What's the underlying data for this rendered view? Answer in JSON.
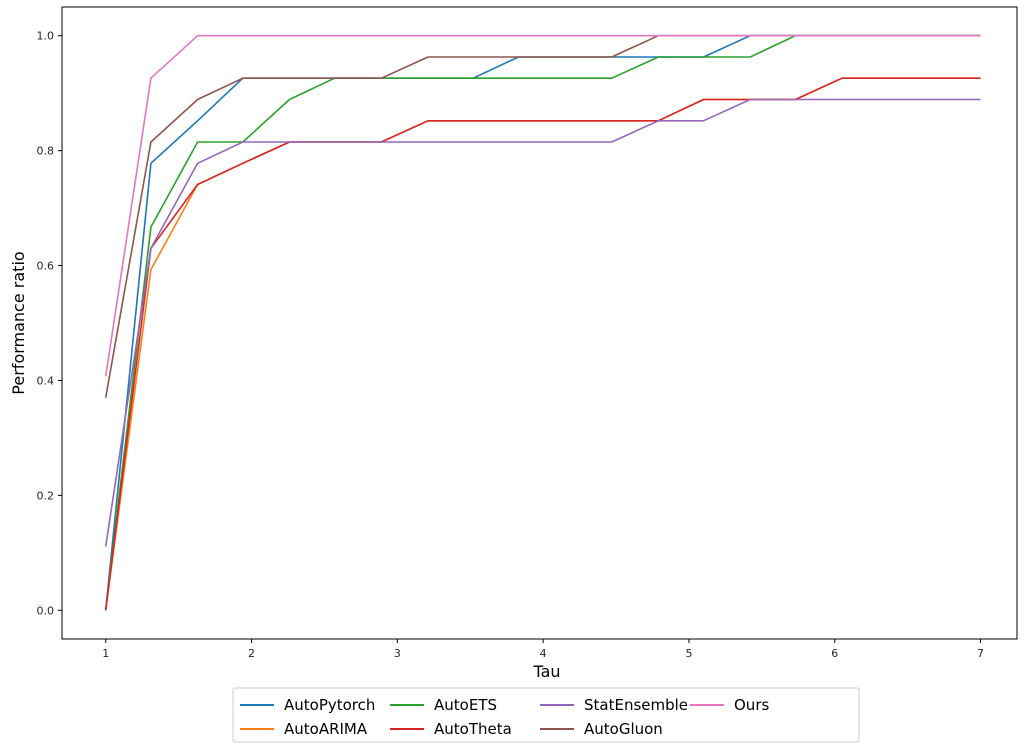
{
  "chart_data": {
    "type": "line",
    "title": "",
    "xlabel": "Tau",
    "ylabel": "Performance ratio",
    "xlim": [
      0.7,
      7.25
    ],
    "ylim": [
      -0.05,
      1.05
    ],
    "xticks": [
      "1",
      "2",
      "3",
      "4",
      "5",
      "6",
      "7"
    ],
    "yticks": [
      "0.0",
      "0.2",
      "0.4",
      "0.6",
      "0.8",
      "1.0"
    ],
    "grid": false,
    "legend_position": "bottom-center",
    "series": [
      {
        "name": "AutoPytorch",
        "color": "#1f77b4",
        "points": [
          [
            1.0,
            0.0
          ],
          [
            1.31,
            0.778
          ],
          [
            1.63,
            0.852
          ],
          [
            1.94,
            0.926
          ],
          [
            3.52,
            0.926
          ],
          [
            3.83,
            0.963
          ],
          [
            5.1,
            0.963
          ],
          [
            5.42,
            1.0
          ],
          [
            7.0,
            1.0
          ]
        ]
      },
      {
        "name": "AutoARIMA",
        "color": "#ff7f0e",
        "points": [
          [
            1.0,
            0.0
          ],
          [
            1.31,
            0.593
          ],
          [
            1.63,
            0.741
          ],
          [
            1.94,
            0.778
          ],
          [
            2.26,
            0.815
          ],
          [
            2.89,
            0.815
          ],
          [
            3.21,
            0.852
          ],
          [
            4.47,
            0.852
          ],
          [
            4.79,
            0.852
          ],
          [
            5.1,
            0.889
          ],
          [
            5.73,
            0.889
          ],
          [
            6.05,
            0.926
          ],
          [
            7.0,
            0.926
          ]
        ]
      },
      {
        "name": "AutoETS",
        "color": "#2ca02c",
        "points": [
          [
            1.0,
            0.0
          ],
          [
            1.31,
            0.667
          ],
          [
            1.63,
            0.815
          ],
          [
            1.94,
            0.815
          ],
          [
            2.26,
            0.889
          ],
          [
            2.57,
            0.926
          ],
          [
            4.47,
            0.926
          ],
          [
            4.79,
            0.963
          ],
          [
            5.42,
            0.963
          ],
          [
            5.73,
            1.0
          ],
          [
            7.0,
            1.0
          ]
        ]
      },
      {
        "name": "AutoTheta",
        "color": "#d62728",
        "points": [
          [
            1.0,
            0.0
          ],
          [
            1.31,
            0.63
          ],
          [
            1.63,
            0.741
          ],
          [
            1.94,
            0.778
          ],
          [
            2.26,
            0.815
          ],
          [
            2.89,
            0.815
          ],
          [
            3.21,
            0.852
          ],
          [
            4.47,
            0.852
          ],
          [
            4.79,
            0.852
          ],
          [
            5.1,
            0.889
          ],
          [
            5.73,
            0.889
          ],
          [
            6.05,
            0.926
          ],
          [
            7.0,
            0.926
          ]
        ]
      },
      {
        "name": "StatEnsemble",
        "color": "#9467bd",
        "points": [
          [
            1.0,
            0.111
          ],
          [
            1.31,
            0.63
          ],
          [
            1.63,
            0.778
          ],
          [
            1.94,
            0.815
          ],
          [
            4.47,
            0.815
          ],
          [
            4.79,
            0.852
          ],
          [
            5.1,
            0.852
          ],
          [
            5.42,
            0.889
          ],
          [
            7.0,
            0.889
          ]
        ]
      },
      {
        "name": "AutoGluon",
        "color": "#8c564b",
        "points": [
          [
            1.0,
            0.37
          ],
          [
            1.31,
            0.815
          ],
          [
            1.63,
            0.889
          ],
          [
            1.94,
            0.926
          ],
          [
            2.89,
            0.926
          ],
          [
            3.21,
            0.963
          ],
          [
            4.47,
            0.963
          ],
          [
            4.79,
            1.0
          ],
          [
            7.0,
            1.0
          ]
        ]
      },
      {
        "name": "Ours",
        "color": "#e377c2",
        "points": [
          [
            1.0,
            0.407
          ],
          [
            1.31,
            0.926
          ],
          [
            1.63,
            1.0
          ],
          [
            7.0,
            1.0
          ]
        ]
      }
    ]
  }
}
